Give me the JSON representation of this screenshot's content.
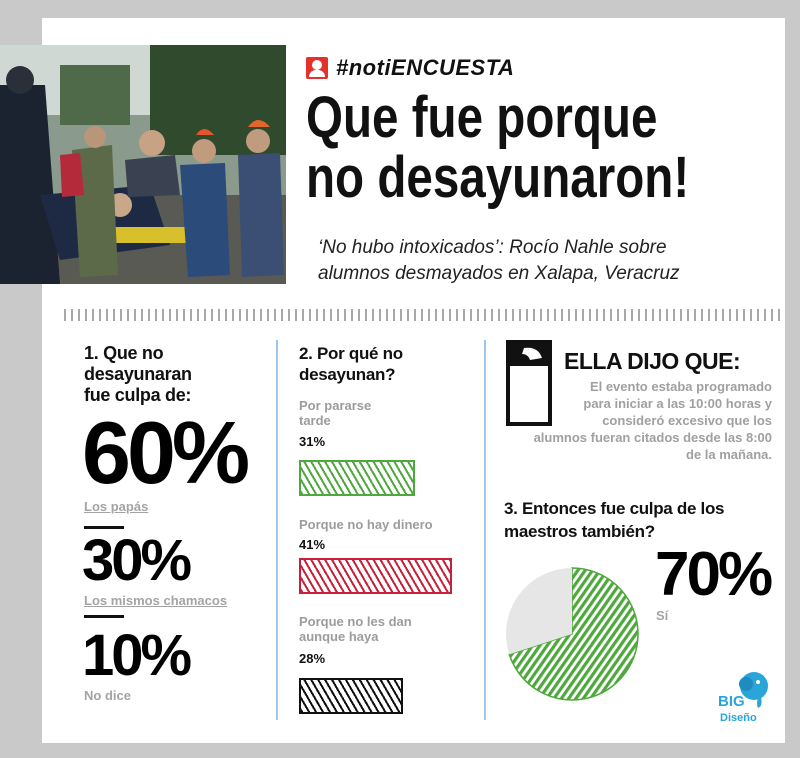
{
  "header": {
    "hashtag": "#notiENCUESTA",
    "headline_line1": "Que fue porque",
    "headline_line2": "no desayunaron!",
    "subtitle_line1": "‘No hubo intoxicados’: Rocío Nahle sobre",
    "subtitle_line2": "alumnos desmayados en Xalapa, Veracruz"
  },
  "q1": {
    "title_lines": [
      "1. Que no",
      "desayunaran",
      "fue culpa de:"
    ],
    "items": [
      {
        "pct": "60%",
        "label": "Los papás"
      },
      {
        "pct": "30%",
        "label": "Los mismos chamacos"
      },
      {
        "pct": "10%",
        "label": "No dice"
      }
    ]
  },
  "q2": {
    "title_lines": [
      "2. Por qué no",
      "desayunan?"
    ],
    "items": [
      {
        "label_lines": [
          "Por pararse",
          "tarde"
        ],
        "pct": "31%",
        "color": "#4fa83d"
      },
      {
        "label_lines": [
          "Porque no hay dinero"
        ],
        "pct": "41%",
        "color": "#c8203a"
      },
      {
        "label_lines": [
          "Porque no les dan",
          "aunque haya"
        ],
        "pct": "28%",
        "color": "#111111"
      }
    ]
  },
  "quote": {
    "title": "ELLA DIJO QUE:",
    "text_lines": [
      "El evento estaba programado",
      "para iniciar a las 10:00 horas y",
      "consideró excesivo que los",
      "alumnos fueran citados desde las 8:00",
      "de la mañana."
    ]
  },
  "q3": {
    "title_lines": [
      "3.  Entonces fue culpa de los",
      "maestros también?"
    ],
    "pct": "70%",
    "label": "Sí"
  },
  "logo": {
    "line1": "BIG",
    "line2": "Diseño",
    "color": "#2aa5d8"
  },
  "chart_data": [
    {
      "type": "bar",
      "title": "1. Que no desayunaran fue culpa de:",
      "categories": [
        "Los papás",
        "Los mismos chamacos",
        "No dice"
      ],
      "values": [
        60,
        30,
        10
      ],
      "unit": "%"
    },
    {
      "type": "bar",
      "title": "2. Por qué no desayunan?",
      "categories": [
        "Por pararse tarde",
        "Porque no hay dinero",
        "Porque no les dan aunque haya"
      ],
      "values": [
        31,
        41,
        28
      ],
      "unit": "%",
      "colors": [
        "#4fa83d",
        "#c8203a",
        "#111111"
      ]
    },
    {
      "type": "pie",
      "title": "3. Entonces fue culpa de los maestros también?",
      "categories": [
        "Sí",
        ""
      ],
      "values": [
        70,
        30
      ],
      "unit": "%",
      "colors": [
        "#4fa83d",
        "#e6e6e6"
      ]
    }
  ]
}
